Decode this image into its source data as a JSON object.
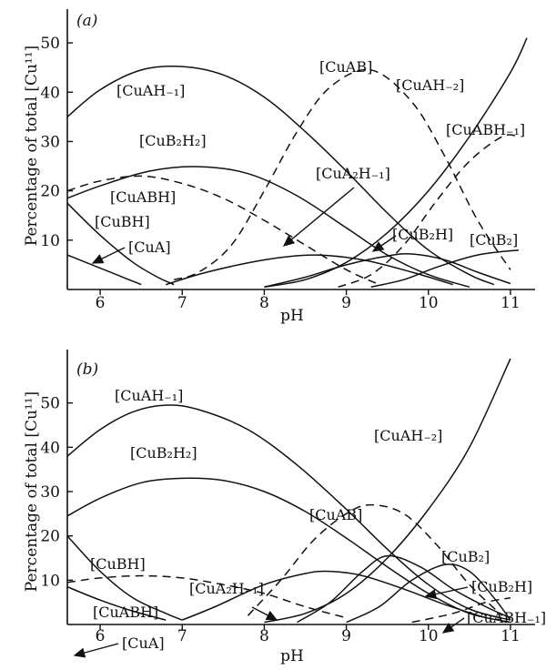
{
  "chart_data": [
    {
      "type": "line",
      "panel_label": "(a)",
      "xlabel": "pH",
      "ylabel": "Percentage of total [Cu¹¹]",
      "xlim": [
        5.6,
        11.3
      ],
      "ylim": [
        0,
        55
      ],
      "xticks": [
        "6",
        "7",
        "8",
        "9",
        "10",
        "11"
      ],
      "yticks": [
        "10",
        "20",
        "30",
        "40",
        "50"
      ],
      "series": [
        {
          "name": "[CuAH₋₁]",
          "style": "solid",
          "points": [
            [
              5.6,
              35
            ],
            [
              6.0,
              40.5
            ],
            [
              6.5,
              44.5
            ],
            [
              7.0,
              45.2
            ],
            [
              7.5,
              43.5
            ],
            [
              8.0,
              39
            ],
            [
              8.5,
              32
            ],
            [
              9.0,
              24
            ],
            [
              9.5,
              15.5
            ],
            [
              10.0,
              8
            ],
            [
              10.5,
              3
            ],
            [
              10.8,
              1
            ]
          ]
        },
        {
          "name": "[CuAB]",
          "style": "dashed",
          "points": [
            [
              6.9,
              2
            ],
            [
              7.2,
              3.5
            ],
            [
              7.6,
              9
            ],
            [
              8.0,
              20
            ],
            [
              8.4,
              32
            ],
            [
              8.8,
              41
            ],
            [
              9.3,
              44.5
            ],
            [
              9.8,
              38
            ],
            [
              10.2,
              27
            ],
            [
              10.6,
              14
            ],
            [
              11.0,
              4
            ]
          ]
        },
        {
          "name": "[CuAH₋₂]",
          "style": "solid",
          "points": [
            [
              8.0,
              0.5
            ],
            [
              8.5,
              2
            ],
            [
              9.0,
              5.5
            ],
            [
              9.5,
              11.5
            ],
            [
              10.0,
              20
            ],
            [
              10.5,
              31
            ],
            [
              11.0,
              44
            ],
            [
              11.2,
              51
            ]
          ]
        },
        {
          "name": "[CuABH₋₁]",
          "style": "dashed",
          "points": [
            [
              8.9,
              0.5
            ],
            [
              9.3,
              3
            ],
            [
              9.7,
              9
            ],
            [
              10.1,
              18
            ],
            [
              10.5,
              26
            ],
            [
              10.9,
              31
            ],
            [
              11.1,
              31
            ]
          ]
        },
        {
          "name": "[CuB₂H₂]",
          "style": "solid",
          "points": [
            [
              5.6,
              18.5
            ],
            [
              6.0,
              21
            ],
            [
              6.6,
              24
            ],
            [
              7.2,
              24.9
            ],
            [
              7.8,
              23.5
            ],
            [
              8.4,
              19
            ],
            [
              9.0,
              12.5
            ],
            [
              9.5,
              7
            ],
            [
              10.0,
              3
            ],
            [
              10.5,
              0.5
            ]
          ]
        },
        {
          "name": "[CuABH]",
          "style": "dashed",
          "points": [
            [
              5.6,
              20
            ],
            [
              6.0,
              22
            ],
            [
              6.5,
              23
            ],
            [
              7.0,
              21.5
            ],
            [
              7.5,
              18.5
            ],
            [
              8.0,
              14
            ],
            [
              8.5,
              9
            ],
            [
              9.0,
              4
            ],
            [
              9.4,
              1
            ]
          ]
        },
        {
          "name": "[CuBH]",
          "style": "solid",
          "points": [
            [
              5.6,
              17.5
            ],
            [
              6.0,
              11
            ],
            [
              6.4,
              5.5
            ],
            [
              6.7,
              2.5
            ],
            [
              6.9,
              1
            ]
          ]
        },
        {
          "name": "[CuA]",
          "style": "solid",
          "points": [
            [
              5.6,
              7
            ],
            [
              5.9,
              5
            ],
            [
              6.2,
              3
            ],
            [
              6.5,
              1
            ]
          ]
        },
        {
          "name": "[CuA₂H₋₁]",
          "style": "solid",
          "points": [
            [
              6.8,
              1
            ],
            [
              7.3,
              3.5
            ],
            [
              8.0,
              6
            ],
            [
              8.6,
              7
            ],
            [
              9.2,
              6
            ],
            [
              9.8,
              3.5
            ],
            [
              10.3,
              1
            ]
          ]
        },
        {
          "name": "[CuB₂H]",
          "style": "solid",
          "points": [
            [
              8.0,
              0.5
            ],
            [
              8.5,
              2.5
            ],
            [
              9.0,
              5
            ],
            [
              9.5,
              6.8
            ],
            [
              9.8,
              7.2
            ],
            [
              10.2,
              6
            ],
            [
              10.6,
              3.5
            ],
            [
              11.0,
              1.2
            ]
          ]
        },
        {
          "name": "[CuB₂]",
          "style": "solid",
          "points": [
            [
              9.3,
              0.5
            ],
            [
              9.7,
              2
            ],
            [
              10.1,
              4.5
            ],
            [
              10.6,
              7
            ],
            [
              11.1,
              8
            ]
          ]
        }
      ]
    },
    {
      "type": "line",
      "panel_label": "(b)",
      "xlabel": "pH",
      "ylabel": "Percentage of total [Cu¹¹]",
      "xlim": [
        5.6,
        11.3
      ],
      "ylim": [
        0,
        60
      ],
      "xticks": [
        "6",
        "7",
        "8",
        "9",
        "10",
        "11"
      ],
      "yticks": [
        "10",
        "20",
        "30",
        "40",
        "50"
      ],
      "series": [
        {
          "name": "[CuAH₋₁]",
          "style": "solid",
          "points": [
            [
              5.6,
              38
            ],
            [
              6.0,
              44
            ],
            [
              6.4,
              48
            ],
            [
              6.8,
              49.5
            ],
            [
              7.2,
              48.5
            ],
            [
              7.8,
              44
            ],
            [
              8.4,
              36
            ],
            [
              9.0,
              26
            ],
            [
              9.5,
              17
            ],
            [
              10.0,
              9
            ],
            [
              10.5,
              3.5
            ],
            [
              11.0,
              1
            ]
          ]
        },
        {
          "name": "[CuB₂H₂]",
          "style": "solid",
          "points": [
            [
              5.6,
              24.5
            ],
            [
              6.0,
              28.5
            ],
            [
              6.5,
              32
            ],
            [
              7.0,
              33
            ],
            [
              7.5,
              32.5
            ],
            [
              8.0,
              30
            ],
            [
              8.5,
              25.5
            ],
            [
              9.0,
              19.5
            ],
            [
              9.5,
              13
            ],
            [
              10.0,
              7
            ],
            [
              10.5,
              2.5
            ],
            [
              11.0,
              0.5
            ]
          ]
        },
        {
          "name": "[CuAH₋₂]",
          "style": "solid",
          "points": [
            [
              8.0,
              0.5
            ],
            [
              8.5,
              2.5
            ],
            [
              9.0,
              7
            ],
            [
              9.5,
              15
            ],
            [
              10.0,
              26
            ],
            [
              10.5,
              40
            ],
            [
              11.0,
              60
            ]
          ]
        },
        {
          "name": "[CuAB]",
          "style": "dashed",
          "points": [
            [
              7.8,
              2
            ],
            [
              8.2,
              10
            ],
            [
              8.6,
              19
            ],
            [
              9.0,
              25
            ],
            [
              9.3,
              27
            ],
            [
              9.7,
              25
            ],
            [
              10.1,
              18
            ],
            [
              10.5,
              9
            ],
            [
              10.9,
              2
            ]
          ]
        },
        {
          "name": "[CuB₂]",
          "style": "solid",
          "points": [
            [
              9.0,
              0.5
            ],
            [
              9.4,
              4
            ],
            [
              9.8,
              10
            ],
            [
              10.2,
              13.5
            ],
            [
              10.5,
              12
            ],
            [
              10.8,
              6
            ],
            [
              11.0,
              1
            ]
          ]
        },
        {
          "name": "[CuB₂H]",
          "style": "solid",
          "points": [
            [
              8.4,
              0.5
            ],
            [
              8.8,
              5
            ],
            [
              9.2,
              12
            ],
            [
              9.5,
              15.5
            ],
            [
              9.9,
              13
            ],
            [
              10.3,
              8
            ],
            [
              10.7,
              4
            ],
            [
              11.0,
              1.5
            ]
          ]
        },
        {
          "name": "[CuABH₋₁]",
          "style": "dashed",
          "points": [
            [
              9.8,
              0.5
            ],
            [
              10.3,
              2.5
            ],
            [
              10.7,
              5
            ],
            [
              11.0,
              6
            ]
          ]
        },
        {
          "name": "[CuBH]",
          "style": "solid",
          "points": [
            [
              5.6,
              20
            ],
            [
              6.0,
              12
            ],
            [
              6.4,
              6
            ],
            [
              6.8,
              2.5
            ],
            [
              7.0,
              1
            ]
          ]
        },
        {
          "name": "[CuABH]",
          "style": "dashed",
          "points": [
            [
              5.6,
              9.5
            ],
            [
              6.0,
              10.5
            ],
            [
              6.5,
              11
            ],
            [
              7.0,
              10.5
            ],
            [
              7.5,
              9
            ],
            [
              8.0,
              7
            ],
            [
              8.5,
              4
            ],
            [
              9.0,
              1.5
            ]
          ]
        },
        {
          "name": "[CuA]",
          "style": "solid",
          "points": [
            [
              5.6,
              8.5
            ],
            [
              6.0,
              5.5
            ],
            [
              6.4,
              3
            ],
            [
              6.8,
              1
            ]
          ]
        },
        {
          "name": "[CuA₂H₋₁]",
          "style": "solid",
          "points": [
            [
              7.0,
              1
            ],
            [
              7.4,
              4
            ],
            [
              8.0,
              9
            ],
            [
              8.5,
              11.5
            ],
            [
              8.8,
              12
            ],
            [
              9.2,
              11
            ],
            [
              9.7,
              8
            ],
            [
              10.2,
              4.5
            ],
            [
              10.7,
              1.5
            ]
          ]
        }
      ]
    }
  ]
}
